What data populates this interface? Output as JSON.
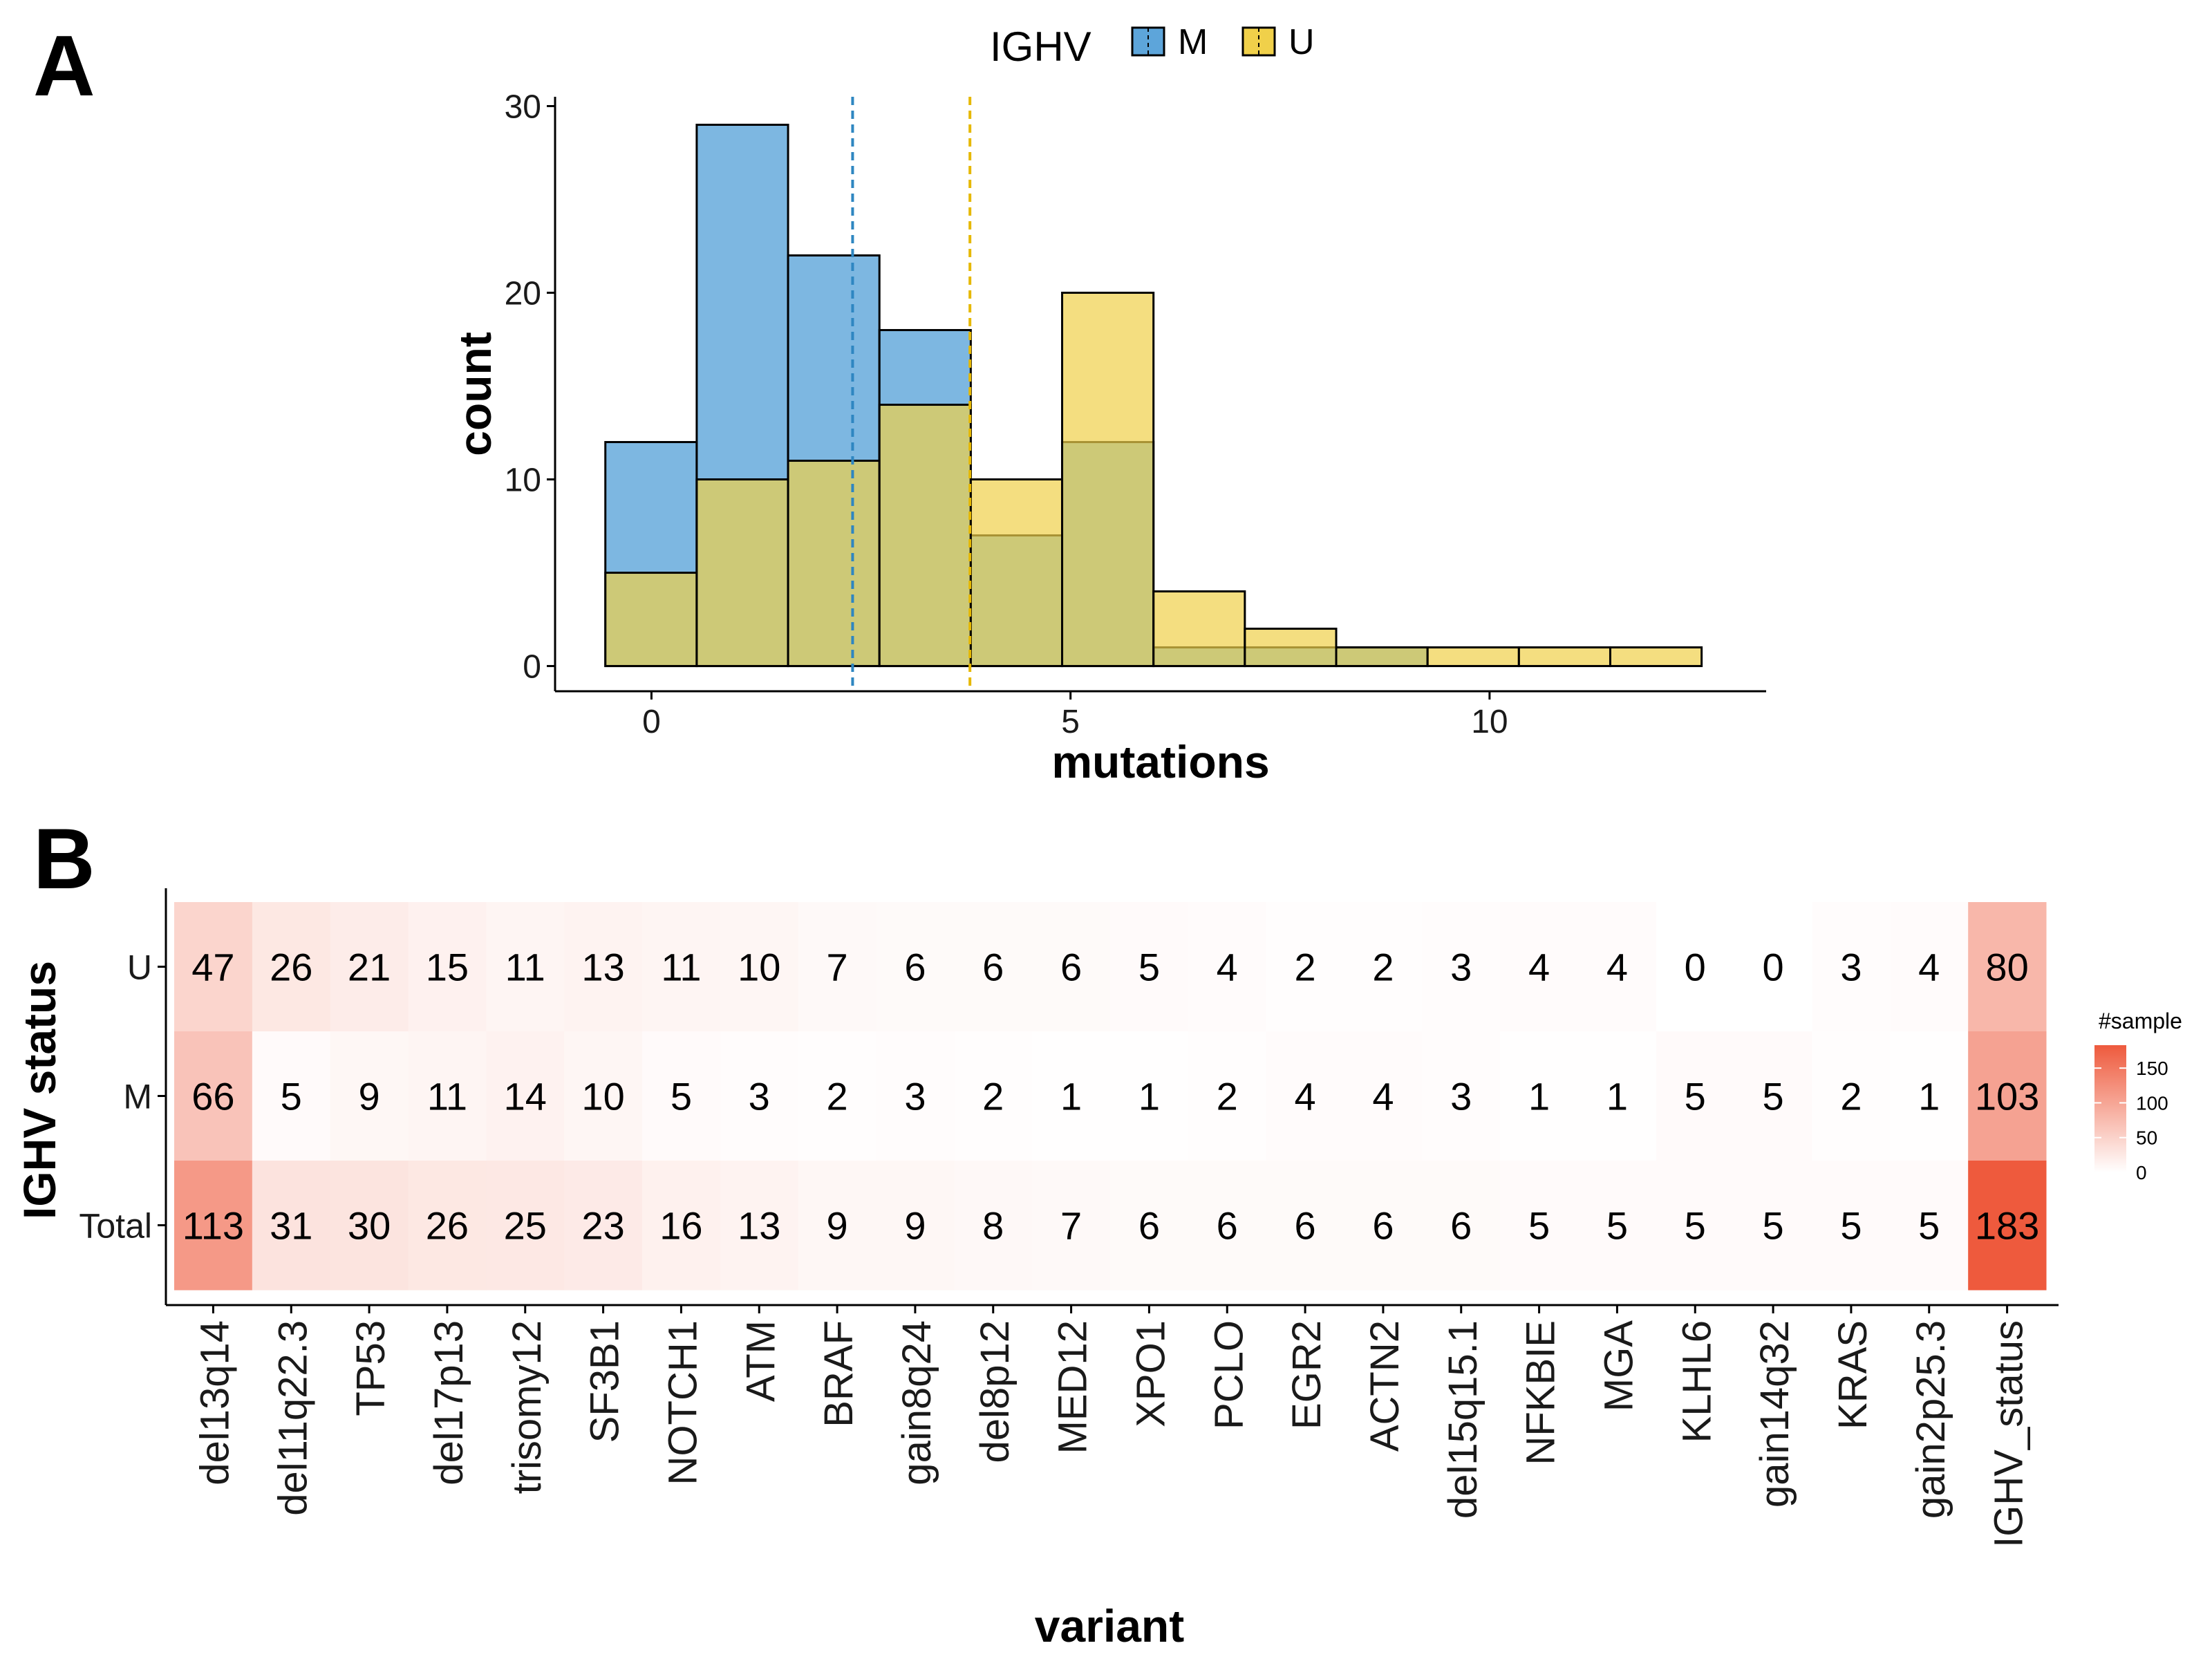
{
  "colors": {
    "M": "#5DA5DA",
    "U": "#F0D04A",
    "overlap": "#B7BF74",
    "heat_low": "#FFFFFF",
    "heat_high": "#EE5A3D"
  },
  "chart_data": [
    {
      "panel": "A",
      "type": "bar",
      "subtype": "overlapping-histogram",
      "xlabel": "mutations",
      "ylabel": "count",
      "xlim": [
        -1.15,
        13.3
      ],
      "ylim": [
        -1.35,
        30.5
      ],
      "xticks": [
        0,
        5,
        10
      ],
      "yticks": [
        0,
        10,
        20,
        30
      ],
      "legend": {
        "title": "IGHV",
        "position": "top",
        "entries": [
          "M",
          "U"
        ]
      },
      "bin_width": 1.09,
      "bin_start": -0.55,
      "series": [
        {
          "name": "M",
          "values": [
            12,
            29,
            22,
            18,
            7,
            12,
            1,
            1,
            1,
            0,
            0,
            0
          ]
        },
        {
          "name": "U",
          "values": [
            5,
            10,
            11,
            14,
            10,
            20,
            4,
            2,
            1,
            1,
            1,
            1
          ]
        }
      ],
      "reference_lines": [
        {
          "series": "M",
          "x": 2.4
        },
        {
          "series": "U",
          "x": 3.8
        }
      ]
    },
    {
      "panel": "B",
      "type": "heatmap",
      "xlabel": "variant",
      "ylabel": "IGHV status",
      "categories": [
        "del13q14",
        "del11q22.3",
        "TP53",
        "del17p13",
        "trisomy12",
        "SF3B1",
        "NOTCH1",
        "ATM",
        "BRAF",
        "gain8q24",
        "del8p12",
        "MED12",
        "XPO1",
        "PCLO",
        "EGR2",
        "ACTN2",
        "del15q15.1",
        "NFKBIE",
        "MGA",
        "KLHL6",
        "gain14q32",
        "KRAS",
        "gain2p25.3",
        "IGHV_status"
      ],
      "rows": [
        "U",
        "M",
        "Total"
      ],
      "values": [
        [
          47,
          26,
          21,
          15,
          11,
          13,
          11,
          10,
          7,
          6,
          6,
          6,
          5,
          4,
          2,
          2,
          3,
          4,
          4,
          0,
          0,
          3,
          4,
          80
        ],
        [
          66,
          5,
          9,
          11,
          14,
          10,
          5,
          3,
          2,
          3,
          2,
          1,
          1,
          2,
          4,
          4,
          3,
          1,
          1,
          5,
          5,
          2,
          1,
          103
        ],
        [
          113,
          31,
          30,
          26,
          25,
          23,
          16,
          13,
          9,
          9,
          8,
          7,
          6,
          6,
          6,
          6,
          6,
          5,
          5,
          5,
          5,
          5,
          5,
          183
        ]
      ],
      "colorbar": {
        "title": "#sample",
        "ticks": [
          0,
          50,
          100,
          150
        ],
        "range": [
          0,
          183
        ]
      }
    }
  ]
}
